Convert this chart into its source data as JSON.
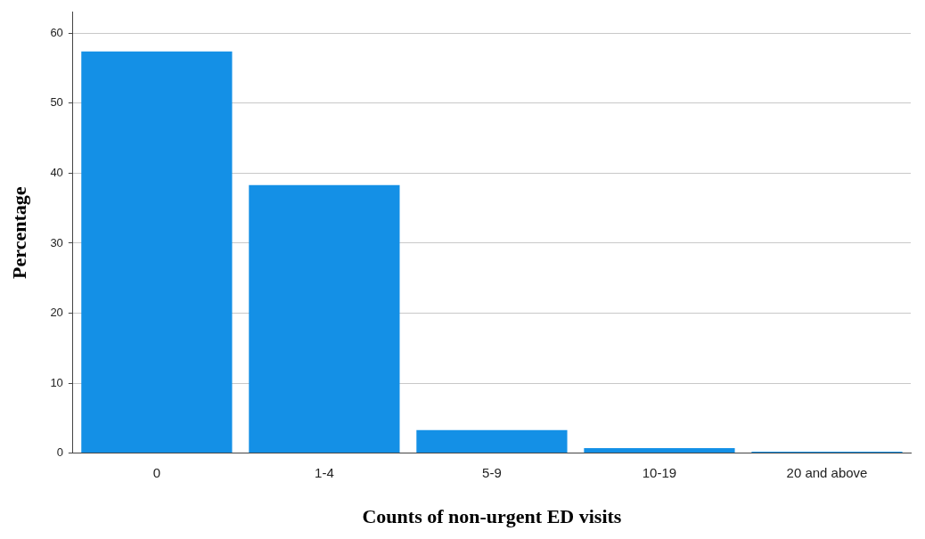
{
  "chart_data": {
    "type": "bar",
    "xlabel": "Counts of non-urgent ED visits",
    "ylabel": "Percentage",
    "categories": [
      "0",
      "1-4",
      "5-9",
      "10-19",
      "20 and above"
    ],
    "values": [
      57.4,
      38.3,
      3.3,
      0.7,
      0.2
    ],
    "color": "#1490e6",
    "ylim": [
      0,
      63
    ],
    "yticks": [
      0,
      10,
      20,
      30,
      40,
      50,
      60
    ],
    "grid": "y",
    "legend": false
  }
}
